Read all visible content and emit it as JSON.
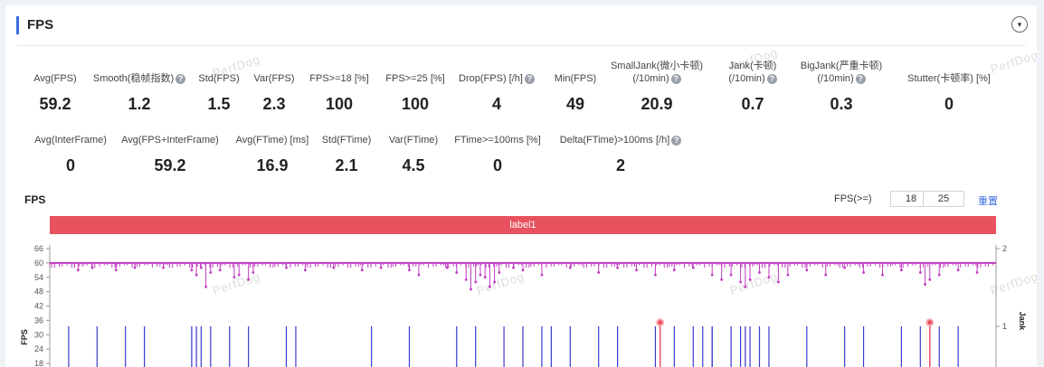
{
  "section": {
    "title": "FPS"
  },
  "watermark": "PerfDog",
  "metrics_row1": [
    {
      "label": "Avg(FPS)",
      "value": "59.2",
      "help": false
    },
    {
      "label": "Smooth(稳帧指数)",
      "value": "1.2",
      "help": true
    },
    {
      "label": "Std(FPS)",
      "value": "1.5",
      "help": false
    },
    {
      "label": "Var(FPS)",
      "value": "2.3",
      "help": false
    },
    {
      "label": "FPS>=18 [%]",
      "value": "100",
      "help": false
    },
    {
      "label": "FPS>=25 [%]",
      "value": "100",
      "help": false
    },
    {
      "label": "Drop(FPS) [/h]",
      "value": "4",
      "help": true
    },
    {
      "label": "Min(FPS)",
      "value": "49",
      "help": false
    },
    {
      "label": "SmallJank(微小卡顿)",
      "label2": "(/10min)",
      "value": "20.9",
      "help": true
    },
    {
      "label": "Jank(卡顿)",
      "label2": "(/10min)",
      "value": "0.7",
      "help": true
    },
    {
      "label": "BigJank(严重卡顿)",
      "label2": "(/10min)",
      "value": "0.3",
      "help": true
    },
    {
      "label": "Stutter(卡顿率) [%]",
      "value": "0",
      "help": false
    }
  ],
  "metrics_row2": [
    {
      "label": "Avg(InterFrame)",
      "value": "0",
      "help": false
    },
    {
      "label": "Avg(FPS+InterFrame)",
      "value": "59.2",
      "help": false
    },
    {
      "label": "Avg(FTime) [ms]",
      "value": "16.9",
      "help": false
    },
    {
      "label": "Std(FTime)",
      "value": "2.1",
      "help": false
    },
    {
      "label": "Var(FTime)",
      "value": "4.5",
      "help": false
    },
    {
      "label": "FTime>=100ms [%]",
      "value": "0",
      "help": false
    },
    {
      "label": "Delta(FTime)>100ms [/h]",
      "value": "2",
      "help": true
    }
  ],
  "chart_header": {
    "title": "FPS",
    "threshold_label": "FPS(>=)",
    "threshold_1": "18",
    "threshold_2": "25",
    "reset_label": "重置"
  },
  "label_bar": {
    "text": "label1"
  },
  "chart_data": {
    "type": "line",
    "title": "",
    "ylabel": "FPS",
    "y2label": "Jank",
    "y_ticks": [
      "66",
      "60",
      "54",
      "48",
      "42",
      "36",
      "30",
      "24",
      "18"
    ],
    "y2_ticks": [
      "2",
      "1"
    ],
    "ylim": [
      18,
      66
    ],
    "y2lim": [
      0,
      2
    ],
    "series": [
      {
        "name": "",
        "color": "#c03cc0",
        "description_values": "FPS mostly 60 with dips to 49–58"
      },
      {
        "name": "",
        "color": "#3a3ad0",
        "kind": "jank-bars"
      }
    ],
    "fps_dips": [
      {
        "x": 0.03,
        "y": 57
      },
      {
        "x": 0.045,
        "y": 58
      },
      {
        "x": 0.07,
        "y": 57
      },
      {
        "x": 0.09,
        "y": 58
      },
      {
        "x": 0.12,
        "y": 58
      },
      {
        "x": 0.15,
        "y": 57
      },
      {
        "x": 0.155,
        "y": 55
      },
      {
        "x": 0.16,
        "y": 58
      },
      {
        "x": 0.165,
        "y": 50
      },
      {
        "x": 0.17,
        "y": 56
      },
      {
        "x": 0.18,
        "y": 57
      },
      {
        "x": 0.195,
        "y": 54
      },
      {
        "x": 0.2,
        "y": 55
      },
      {
        "x": 0.21,
        "y": 53
      },
      {
        "x": 0.215,
        "y": 56
      },
      {
        "x": 0.25,
        "y": 58
      },
      {
        "x": 0.27,
        "y": 57
      },
      {
        "x": 0.3,
        "y": 58
      },
      {
        "x": 0.33,
        "y": 57
      },
      {
        "x": 0.35,
        "y": 58
      },
      {
        "x": 0.38,
        "y": 57
      },
      {
        "x": 0.39,
        "y": 55
      },
      {
        "x": 0.42,
        "y": 58
      },
      {
        "x": 0.43,
        "y": 56
      },
      {
        "x": 0.44,
        "y": 53
      },
      {
        "x": 0.445,
        "y": 49
      },
      {
        "x": 0.45,
        "y": 52
      },
      {
        "x": 0.455,
        "y": 55
      },
      {
        "x": 0.46,
        "y": 54
      },
      {
        "x": 0.465,
        "y": 50
      },
      {
        "x": 0.47,
        "y": 52
      },
      {
        "x": 0.475,
        "y": 56
      },
      {
        "x": 0.49,
        "y": 58
      },
      {
        "x": 0.5,
        "y": 57
      },
      {
        "x": 0.52,
        "y": 55
      },
      {
        "x": 0.55,
        "y": 58
      },
      {
        "x": 0.58,
        "y": 56
      },
      {
        "x": 0.6,
        "y": 58
      },
      {
        "x": 0.62,
        "y": 57
      },
      {
        "x": 0.64,
        "y": 55
      },
      {
        "x": 0.66,
        "y": 57
      },
      {
        "x": 0.68,
        "y": 58
      },
      {
        "x": 0.7,
        "y": 55
      },
      {
        "x": 0.71,
        "y": 53
      },
      {
        "x": 0.72,
        "y": 55
      },
      {
        "x": 0.73,
        "y": 52
      },
      {
        "x": 0.735,
        "y": 50
      },
      {
        "x": 0.74,
        "y": 53
      },
      {
        "x": 0.75,
        "y": 56
      },
      {
        "x": 0.76,
        "y": 54
      },
      {
        "x": 0.77,
        "y": 52
      },
      {
        "x": 0.78,
        "y": 55
      },
      {
        "x": 0.8,
        "y": 57
      },
      {
        "x": 0.82,
        "y": 55
      },
      {
        "x": 0.84,
        "y": 58
      },
      {
        "x": 0.86,
        "y": 56
      },
      {
        "x": 0.88,
        "y": 55
      },
      {
        "x": 0.9,
        "y": 57
      },
      {
        "x": 0.92,
        "y": 56
      },
      {
        "x": 0.925,
        "y": 51
      },
      {
        "x": 0.93,
        "y": 53
      },
      {
        "x": 0.94,
        "y": 55
      },
      {
        "x": 0.96,
        "y": 57
      },
      {
        "x": 0.98,
        "y": 56
      }
    ],
    "jank_x": [
      0.02,
      0.05,
      0.08,
      0.1,
      0.15,
      0.155,
      0.16,
      0.17,
      0.19,
      0.21,
      0.25,
      0.26,
      0.34,
      0.38,
      0.43,
      0.45,
      0.48,
      0.5,
      0.52,
      0.53,
      0.55,
      0.58,
      0.6,
      0.64,
      0.66,
      0.68,
      0.69,
      0.7,
      0.7,
      0.72,
      0.73,
      0.735,
      0.74,
      0.75,
      0.76,
      0.8,
      0.84,
      0.86,
      0.9,
      0.92,
      0.93,
      0.94,
      0.96
    ],
    "bigjank_x": [
      0.645,
      0.93
    ]
  }
}
